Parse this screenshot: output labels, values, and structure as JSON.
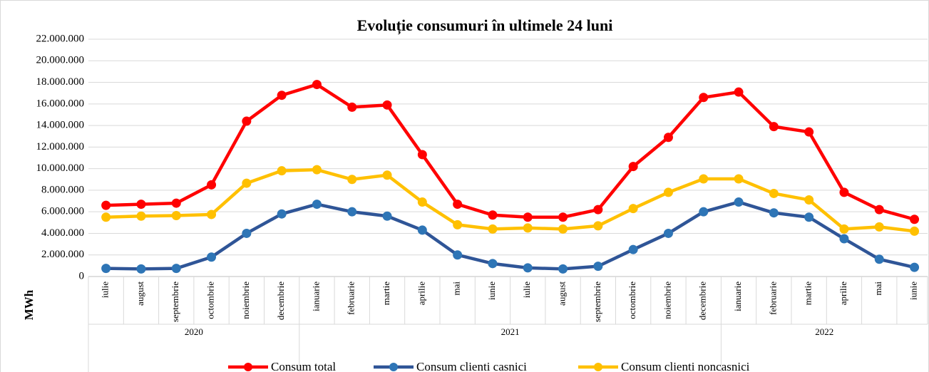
{
  "chart_data": {
    "type": "line",
    "title": "Evoluție consumuri în ultimele 24 luni",
    "y_label": "MWh",
    "categories": [
      "iulie",
      "august",
      "septembrie",
      "octombrie",
      "noiembrie",
      "decembrie",
      "ianuarie",
      "februarie",
      "martie",
      "aprilie",
      "mai",
      "iunie",
      "iulie",
      "august",
      "septembrie",
      "octombrie",
      "noiembrie",
      "decembrie",
      "ianuarie",
      "februarie",
      "martie",
      "aprilie",
      "mai",
      "iunie"
    ],
    "x_groups": [
      {
        "name": "2020",
        "span": 6
      },
      {
        "name": "2021",
        "span": 12
      },
      {
        "name": "2022",
        "span": 6
      }
    ],
    "series": [
      {
        "name": "Consum total",
        "color": "#ff0000",
        "marker_color": "#ff0000",
        "values": [
          6600000,
          6700000,
          6800000,
          8500000,
          14400000,
          16800000,
          17800000,
          15700000,
          15900000,
          11300000,
          6700000,
          5700000,
          5500000,
          5500000,
          6200000,
          10200000,
          12900000,
          16600000,
          17100000,
          13900000,
          13400000,
          7800000,
          6200000,
          5300000
        ]
      },
      {
        "name": "Consum clienti casnici",
        "color": "#2f5597",
        "marker_color": "#2e75b6",
        "values": [
          750000,
          700000,
          750000,
          1800000,
          4000000,
          5800000,
          6700000,
          6000000,
          5600000,
          4300000,
          2000000,
          1200000,
          800000,
          700000,
          950000,
          2500000,
          4000000,
          6000000,
          6900000,
          5900000,
          5500000,
          3500000,
          1600000,
          850000
        ]
      },
      {
        "name": "Consum clienti noncasnici",
        "color": "#ffc000",
        "marker_color": "#ffc000",
        "values": [
          5500000,
          5600000,
          5650000,
          5750000,
          8650000,
          9800000,
          9900000,
          9000000,
          9400000,
          6900000,
          4800000,
          4400000,
          4500000,
          4400000,
          4700000,
          6300000,
          7800000,
          9050000,
          9050000,
          7700000,
          7100000,
          4400000,
          4600000,
          4200000
        ]
      }
    ],
    "ylim": [
      0,
      22000000
    ],
    "yticks": [
      0,
      {
        "value": 2000000,
        "label": "2.000.000"
      },
      {
        "value": 4000000,
        "label": "4.000.000"
      },
      {
        "value": 6000000,
        "label": "6.000.000"
      },
      {
        "value": 8000000,
        "label": "8.000.000"
      },
      {
        "value": 10000000,
        "label": "10.000.000"
      },
      {
        "value": 12000000,
        "label": "12.000.000"
      },
      {
        "value": 14000000,
        "label": "14.000.000"
      },
      {
        "value": 16000000,
        "label": "16.000.000"
      },
      {
        "value": 18000000,
        "label": "18.000.000"
      },
      {
        "value": 20000000,
        "label": "20.000.000"
      },
      {
        "value": 22000000,
        "label": "22.000.000"
      }
    ],
    "grid": true
  }
}
